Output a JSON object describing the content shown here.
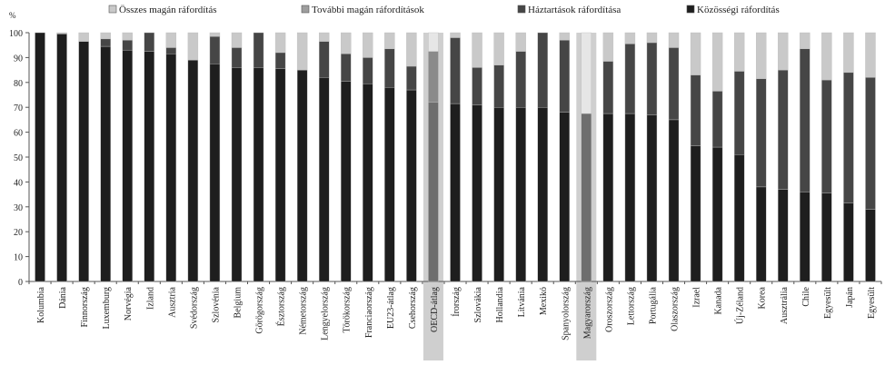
{
  "chart_data": {
    "type": "bar",
    "stacked": true,
    "ylabel": "%",
    "ylim": [
      0,
      100
    ],
    "yticks": [
      0,
      10,
      20,
      30,
      40,
      50,
      60,
      70,
      80,
      90,
      100
    ],
    "grid": false,
    "legend_position": "top",
    "categories": [
      "Kolumbia",
      "Dánia",
      "Finnország",
      "Luxemburg",
      "Norvégia",
      "Izland",
      "Ausztria",
      "Svédország",
      "Szlovénia",
      "Belgium",
      "Görögország",
      "Észtország",
      "Németország",
      "Lengyelország",
      "Törökország",
      "Franciaország",
      "EU23-átlag",
      "Csehország",
      "OECD-átlag",
      "Írország",
      "Szlovákia",
      "Hollandia",
      "Litvánia",
      "Mexikó",
      "Spanyolország",
      "Magyarország",
      "Oroszország",
      "Lettország",
      "Portugália",
      "Olaszország",
      "Izrael",
      "Kanada",
      "Új-Zéland",
      "Korea",
      "Ausztrália",
      "Chile",
      "Egyesült",
      "Japán",
      "Egyesült"
    ],
    "highlighted_categories": [
      "OECD-átlag",
      "Magyarország"
    ],
    "series": [
      {
        "name": "Közösségi ráfordítás",
        "color": "#1e1e1e",
        "values": [
          100,
          99.5,
          96.5,
          94.5,
          93,
          92.5,
          91.5,
          89,
          87.5,
          86,
          86,
          85.5,
          85,
          82,
          80.5,
          79.5,
          78,
          77,
          72,
          71.5,
          71,
          70,
          70,
          70,
          68,
          67.5,
          67.5,
          67.5,
          67,
          65,
          54.5,
          54,
          51,
          38,
          37,
          36,
          35.5,
          31.5,
          29
        ]
      },
      {
        "name": "Háztartások ráfordítása",
        "color": "#464646",
        "values": [
          0,
          0,
          0,
          3,
          4,
          7.5,
          2.5,
          0,
          11,
          8,
          14,
          6.5,
          0,
          14.5,
          11,
          10.5,
          15.5,
          9.5,
          20.5,
          26.5,
          15,
          17,
          22.5,
          30,
          29,
          0,
          21,
          28,
          29,
          29,
          28.5,
          22.5,
          33.5,
          43.5,
          48,
          57.5,
          45.5,
          52.5,
          53
        ]
      },
      {
        "name": "További magán ráfordítások",
        "color": "#9e9e9e",
        "values": [
          0,
          0,
          0,
          0,
          0,
          0,
          0,
          0,
          0,
          0,
          0,
          0,
          0,
          0,
          0,
          0,
          0,
          0,
          0,
          0,
          0,
          0,
          0,
          0,
          0,
          0,
          0,
          0,
          0,
          0,
          0,
          0,
          0,
          0,
          0,
          0,
          0,
          0,
          0
        ]
      },
      {
        "name": "Összes magán ráfordítás",
        "color": "#c9c9c9",
        "values": [
          0,
          0.5,
          3.5,
          2.5,
          3,
          0,
          6,
          11,
          1.5,
          6,
          0,
          8,
          15,
          3.5,
          8.5,
          10,
          6.5,
          13.5,
          7.5,
          2,
          14,
          13,
          7.5,
          0,
          3,
          32.5,
          11.5,
          4.5,
          4,
          6,
          17,
          23.5,
          15.5,
          18.5,
          15,
          6.5,
          19,
          16,
          18
        ]
      }
    ]
  }
}
